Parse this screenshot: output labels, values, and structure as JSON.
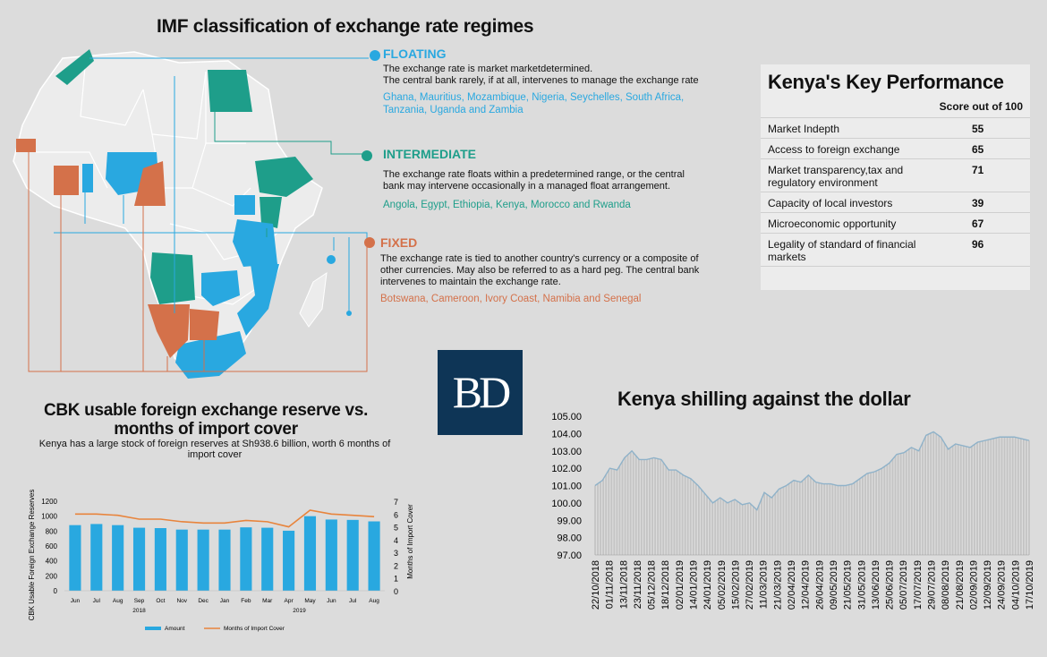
{
  "map": {
    "title": "IMF classification of exchange rate regimes",
    "categories": [
      {
        "name": "FLOATING",
        "color": "#29a8e0",
        "desc": [
          "The exchange rate is market marketdetermined.",
          "The central bank rarely, if at all, intervenes to manage the exchange rate"
        ],
        "countries": [
          "Ghana, Mauritius, Mozambique, Nigeria, Seychelles, South Africa,",
          "Tanzania, Uganda and Zambia"
        ]
      },
      {
        "name": "INTERMEDIATE",
        "color": "#1e9e8a",
        "desc": [
          "The exchange rate floats within a predetermined range, or the central",
          "bank may intervene occasionally in a managed float arrangement."
        ],
        "countries": [
          "Angola, Egypt, Ethiopia, Kenya, Morocco and Rwanda"
        ]
      },
      {
        "name": "FIXED",
        "color": "#d4714a",
        "desc": [
          "The exchange rate is tied to another country's currency or a composite of",
          "other currencies. May also be referred to as a hard peg. The central bank",
          "intervenes to maintain the exchange rate."
        ],
        "countries": [
          "Botswana, Cameroon, Ivory Coast, Namibia and Senegal"
        ]
      }
    ]
  },
  "kpi": {
    "title": "Kenya's Key Performance",
    "score_header": "Score out of 100",
    "rows": [
      {
        "label": "Market Indepth",
        "value": "55"
      },
      {
        "label": "Access to foreign exchange",
        "value": "65"
      },
      {
        "label": "Market transparency,tax and regulatory environment",
        "value": "71"
      },
      {
        "label": "Capacity of local investors",
        "value": "39"
      },
      {
        "label": "Microeconomic opportunity",
        "value": "67"
      },
      {
        "label": "Legality of standard of financial markets",
        "value": "96"
      }
    ]
  },
  "logo": {
    "text": "BD"
  },
  "chart_data": [
    {
      "type": "bar",
      "title": "CBK usable foreign exchange reserve vs. months of import cover",
      "subtitle": "Kenya has a large stock of foreign reserves at Sh938.6 billion, worth 6 months of import cover",
      "categories": [
        "Jun",
        "Jul",
        "Aug",
        "Sep",
        "Oct",
        "Nov",
        "Dec",
        "Jan",
        "Feb",
        "Mar",
        "Apr",
        "May",
        "Jun",
        "Jul",
        "Aug"
      ],
      "year_labels": [
        "2018",
        "2019"
      ],
      "ylabel": "CBK Usable Foreign Exchange Reserves",
      "y2label": "Months of Import Cover",
      "ylim": [
        0,
        1200
      ],
      "y2lim": [
        0,
        7
      ],
      "yticks": [
        "0",
        "200",
        "400",
        "600",
        "800",
        "1000",
        "1200"
      ],
      "y2ticks": [
        "0",
        "1",
        "2",
        "3",
        "4",
        "5",
        "6",
        "7"
      ],
      "series": [
        {
          "name": "Amount",
          "type": "bar",
          "color": "#29a8e0",
          "values": [
            880,
            895,
            880,
            845,
            840,
            820,
            820,
            820,
            850,
            845,
            805,
            1000,
            955,
            950,
            930
          ]
        },
        {
          "name": "Months of Import Cover",
          "type": "line",
          "axis": "right",
          "color": "#e8843c",
          "values": [
            6.0,
            6.0,
            5.9,
            5.6,
            5.6,
            5.4,
            5.3,
            5.3,
            5.5,
            5.4,
            5.0,
            6.3,
            6.0,
            5.9,
            5.8
          ]
        }
      ]
    },
    {
      "type": "area",
      "title": "Kenya shilling against the dollar",
      "ylim": [
        97,
        105
      ],
      "yticks": [
        "97.00",
        "98.00",
        "99.00",
        "100.00",
        "101.00",
        "102.00",
        "103.00",
        "104.00",
        "105.00"
      ],
      "xlabels": [
        "22/10/2018",
        "01/11/2018",
        "13/11/2018",
        "23/11/2018",
        "05/12/2018",
        "18/12/2018",
        "02/01/2019",
        "14/01/2019",
        "24/01/2019",
        "05/02/2019",
        "15/02/2019",
        "27/02/2019",
        "11/03/2019",
        "21/03/2019",
        "02/04/2019",
        "12/04/2019",
        "26/04/2019",
        "09/05/2019",
        "21/05/2019",
        "31/05/2019",
        "13/06/2019",
        "25/06/2019",
        "05/07/2019",
        "17/07/2019",
        "29/07/2019",
        "08/08/2019",
        "21/08/2019",
        "02/09/2019",
        "12/09/2019",
        "24/09/2019",
        "04/10/2019",
        "17/10/2019"
      ],
      "values": [
        101.0,
        101.3,
        102.0,
        101.9,
        102.6,
        103.0,
        102.5,
        102.5,
        102.6,
        102.5,
        101.9,
        101.9,
        101.6,
        101.4,
        101.0,
        100.5,
        100.0,
        100.3,
        100.0,
        100.2,
        99.9,
        100.0,
        99.6,
        100.6,
        100.3,
        100.8,
        101.0,
        101.3,
        101.2,
        101.6,
        101.2,
        101.1,
        101.1,
        101.0,
        101.0,
        101.1,
        101.4,
        101.7,
        101.8,
        102.0,
        102.3,
        102.8,
        102.9,
        103.2,
        103.0,
        103.9,
        104.1,
        103.8,
        103.1,
        103.4,
        103.3,
        103.2,
        103.5,
        103.6,
        103.7,
        103.8,
        103.8,
        103.8,
        103.7,
        103.6
      ],
      "color": "#8fb2c9"
    }
  ],
  "legend": {
    "amount": "Amount",
    "months": "Months of Import Cover"
  }
}
